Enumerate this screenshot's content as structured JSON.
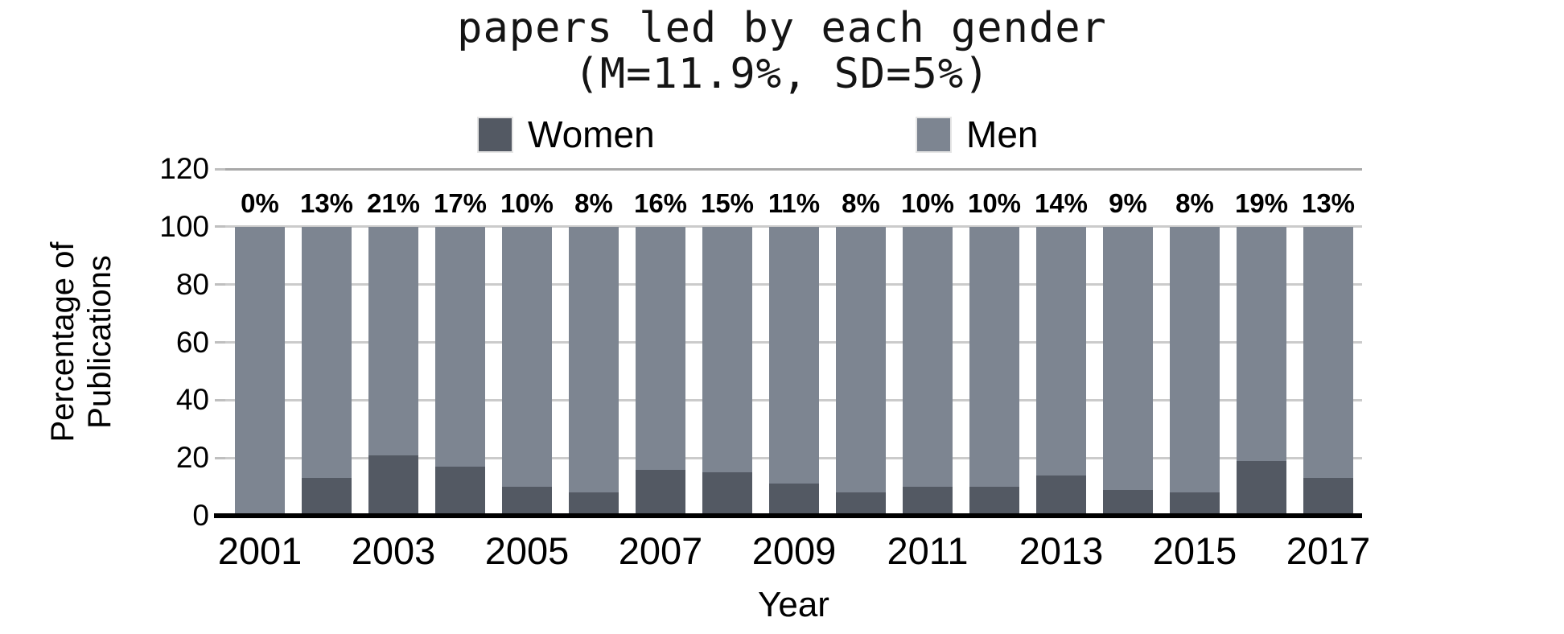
{
  "chart_data": {
    "type": "bar",
    "stacked": true,
    "title": "papers led by each gender",
    "subtitle": "(M=11.9%, SD=5%)",
    "xlabel": "Year",
    "ylabel": "Percentage of Publications",
    "ylabel_lines": {
      "line1": "Percentage of",
      "line2": "Publications"
    },
    "categories": [
      2001,
      2002,
      2003,
      2004,
      2005,
      2006,
      2007,
      2008,
      2009,
      2010,
      2011,
      2012,
      2013,
      2014,
      2015,
      2016,
      2017
    ],
    "series": [
      {
        "name": "Women",
        "color": "#535963",
        "values": [
          0,
          13,
          21,
          17,
          10,
          8,
          16,
          15,
          11,
          8,
          10,
          10,
          14,
          9,
          8,
          19,
          13
        ]
      },
      {
        "name": "Men",
        "color": "#7d8591",
        "values": [
          100,
          87,
          79,
          83,
          90,
          92,
          84,
          85,
          89,
          92,
          90,
          90,
          86,
          91,
          92,
          81,
          87
        ]
      }
    ],
    "bar_labels": [
      "0%",
      "13%",
      "21%",
      "17%",
      "10%",
      "8%",
      "16%",
      "15%",
      "11%",
      "8%",
      "10%",
      "10%",
      "14%",
      "9%",
      "8%",
      "19%",
      "13%"
    ],
    "y_ticks": [
      0,
      20,
      40,
      60,
      80,
      100,
      120
    ],
    "x_tick_labels": [
      "2001",
      "2003",
      "2005",
      "2007",
      "2009",
      "2011",
      "2013",
      "2015",
      "2017"
    ],
    "ylim": [
      0,
      120
    ],
    "grid": true,
    "legend_position": "top",
    "colors": {
      "women": "#535963",
      "men": "#7d8591",
      "gridline": "#cbcbcb",
      "top_gridline": "#a8a8a8",
      "axis_line": "#000000",
      "background": "#ffffff"
    }
  }
}
